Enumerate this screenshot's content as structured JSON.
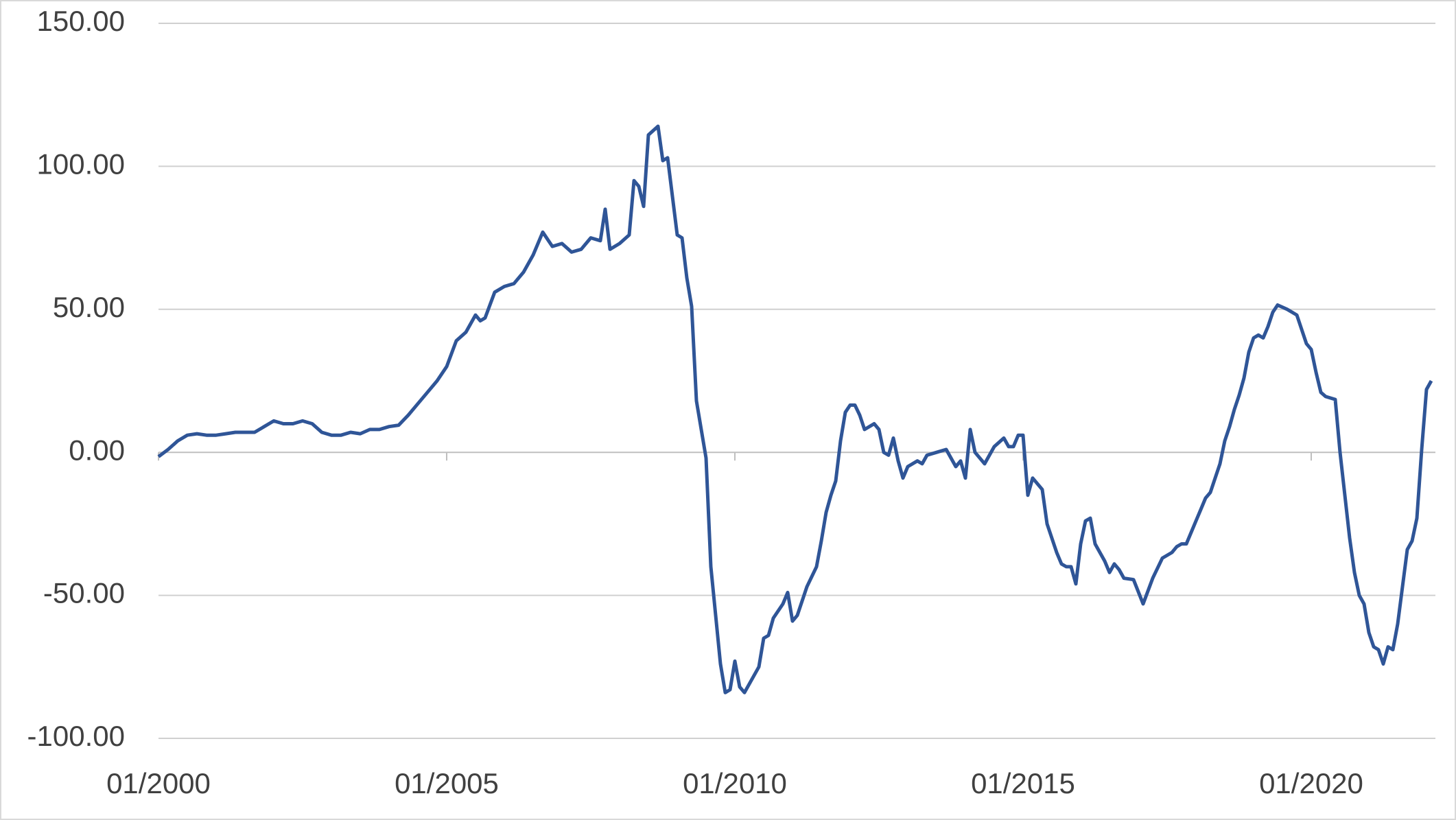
{
  "chart_data": {
    "type": "line",
    "x": [
      "01/2000",
      "03/2000",
      "05/2000",
      "07/2000",
      "09/2000",
      "11/2000",
      "01/2001",
      "03/2001",
      "05/2001",
      "07/2001",
      "09/2001",
      "11/2001",
      "01/2002",
      "03/2002",
      "05/2002",
      "07/2002",
      "09/2002",
      "11/2002",
      "01/2003",
      "03/2003",
      "05/2003",
      "07/2003",
      "09/2003",
      "11/2003",
      "01/2004",
      "03/2004",
      "05/2004",
      "07/2004",
      "09/2004",
      "11/2004",
      "01/2005",
      "03/2005",
      "05/2005",
      "07/2005",
      "08/2005",
      "09/2005",
      "11/2005",
      "01/2006",
      "03/2006",
      "05/2006",
      "07/2006",
      "09/2006",
      "11/2006",
      "01/2007",
      "03/2007",
      "05/2007",
      "07/2007",
      "09/2007",
      "10/2007",
      "11/2007",
      "01/2008",
      "03/2008",
      "04/2008",
      "05/2008",
      "06/2008",
      "07/2008",
      "09/2008",
      "10/2008",
      "11/2008",
      "01/2009",
      "02/2009",
      "03/2009",
      "04/2009",
      "05/2009",
      "07/2009",
      "08/2009",
      "09/2009",
      "10/2009",
      "11/2009",
      "12/2009",
      "01/2010",
      "02/2010",
      "03/2010",
      "04/2010",
      "05/2010",
      "06/2010",
      "07/2010",
      "08/2010",
      "09/2010",
      "11/2010",
      "12/2010",
      "01/2011",
      "02/2011",
      "04/2011",
      "06/2011",
      "07/2011",
      "08/2011",
      "09/2011",
      "10/2011",
      "11/2011",
      "12/2011",
      "01/2012",
      "02/2012",
      "03/2012",
      "04/2012",
      "06/2012",
      "07/2012",
      "08/2012",
      "09/2012",
      "10/2012",
      "11/2012",
      "12/2012",
      "01/2013",
      "03/2013",
      "04/2013",
      "05/2013",
      "07/2013",
      "09/2013",
      "11/2013",
      "12/2013",
      "01/2014",
      "02/2014",
      "03/2014",
      "05/2014",
      "07/2014",
      "09/2014",
      "10/2014",
      "11/2014",
      "12/2014",
      "01/2015",
      "02/2015",
      "03/2015",
      "05/2015",
      "06/2015",
      "08/2015",
      "09/2015",
      "10/2015",
      "11/2015",
      "12/2015",
      "01/2016",
      "02/2016",
      "03/2016",
      "04/2016",
      "06/2016",
      "07/2016",
      "08/2016",
      "09/2016",
      "10/2016",
      "12/2016",
      "02/2017",
      "04/2017",
      "06/2017",
      "08/2017",
      "09/2017",
      "10/2017",
      "11/2017",
      "01/2018",
      "02/2018",
      "03/2018",
      "04/2018",
      "05/2018",
      "06/2018",
      "07/2018",
      "08/2018",
      "09/2018",
      "10/2018",
      "11/2018",
      "12/2018",
      "01/2019",
      "02/2019",
      "03/2019",
      "04/2019",
      "05/2019",
      "06/2019",
      "08/2019",
      "10/2019",
      "12/2019",
      "01/2020",
      "02/2020",
      "03/2020",
      "04/2020",
      "06/2020",
      "07/2020",
      "08/2020",
      "09/2020",
      "10/2020",
      "11/2020",
      "12/2020",
      "01/2021",
      "02/2021",
      "03/2021",
      "04/2021",
      "05/2021",
      "06/2021",
      "07/2021",
      "08/2021",
      "09/2021",
      "10/2021",
      "11/2021",
      "12/2021",
      "01/2022",
      "02/2022"
    ],
    "series": [
      {
        "color": "#2f5597",
        "values": [
          -1.5,
          1,
          4,
          6,
          6.5,
          6,
          6,
          6.5,
          7,
          7,
          7,
          9,
          11,
          10,
          10,
          11,
          10,
          7,
          6,
          6,
          7,
          6.5,
          8,
          8,
          9,
          9.5,
          13,
          17,
          21,
          25,
          30,
          39,
          42,
          48,
          46,
          47,
          56,
          58,
          59,
          63,
          69,
          77,
          72,
          73,
          70,
          71,
          75,
          74,
          85,
          71,
          73,
          76,
          95,
          93,
          86,
          111,
          114,
          102,
          103,
          76,
          75,
          61,
          51,
          18,
          -2,
          -40,
          -57,
          -74,
          -84,
          -83,
          -73,
          -82,
          -84,
          -81,
          -78,
          -75,
          -65,
          -64,
          -58,
          -53,
          -49,
          -59,
          -57,
          -47,
          -40,
          -31,
          -21,
          -15,
          -10,
          4,
          14,
          16.5,
          16.5,
          13,
          8,
          10,
          8,
          0,
          -1,
          5,
          -3,
          -9,
          -5,
          -3,
          -4,
          -1,
          0,
          1,
          -5,
          -3,
          -9,
          8,
          0,
          -4,
          2,
          5,
          2,
          2,
          6,
          6,
          -15,
          -9,
          -13,
          -25,
          -35,
          -39,
          -40,
          -40,
          -46,
          -32,
          -24,
          -23,
          -32,
          -38,
          -42,
          -39,
          -41,
          -44,
          -44.5,
          -53,
          -44,
          -37,
          -35,
          -33,
          -32,
          -32,
          -24,
          -20,
          -16,
          -14,
          -9,
          -4,
          4,
          9,
          15,
          20,
          26,
          35,
          40,
          41,
          40,
          44,
          49,
          51.5,
          50,
          48,
          38,
          36,
          28,
          21,
          19.5,
          18.5,
          0,
          -15,
          -30,
          -42,
          -50,
          -53,
          -63,
          -68,
          -69,
          -74,
          -68,
          -69,
          -60,
          -47,
          -34,
          -31,
          -23,
          1,
          22,
          25
        ]
      }
    ],
    "ylim": [
      -100,
      150
    ],
    "yticks": [
      {
        "value": -100,
        "label": "-100.00"
      },
      {
        "value": -50,
        "label": "-50.00"
      },
      {
        "value": 0,
        "label": "0.00"
      },
      {
        "value": 50,
        "label": "50.00"
      },
      {
        "value": 100,
        "label": "100.00"
      },
      {
        "value": 150,
        "label": "150.00"
      }
    ],
    "xticks": [
      "01/2000",
      "01/2005",
      "01/2010",
      "01/2015",
      "01/2020"
    ],
    "grid": true
  }
}
